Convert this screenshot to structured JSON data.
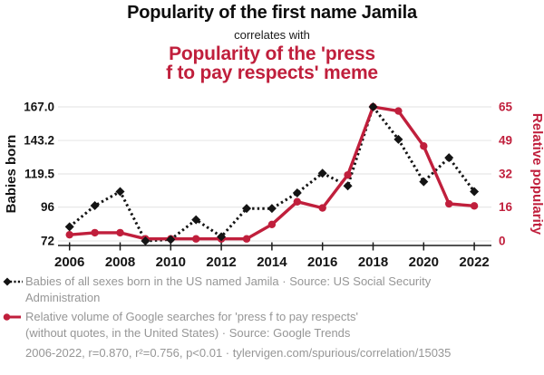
{
  "header": {
    "title": "Popularity of the first name Jamila",
    "connector": "correlates with",
    "subtitle_lines": [
      "Popularity of the 'press",
      "f to pay respects' meme"
    ]
  },
  "colors": {
    "accent_red": "#c01f3c",
    "series_black": "#141414",
    "grid": "#e8e8e8",
    "axis_line": "#1a1a1a",
    "legend_gray": "#969696"
  },
  "chart_data": {
    "type": "line",
    "title": "Popularity of the first name Jamila correlates with Popularity of the 'press f to pay respects' meme",
    "x": [
      2006,
      2007,
      2008,
      2009,
      2010,
      2011,
      2012,
      2013,
      2014,
      2015,
      2016,
      2017,
      2018,
      2019,
      2020,
      2021,
      2022
    ],
    "series": [
      {
        "name": "Babies of all sexes born in the US named Jamila",
        "axis": "left",
        "color": "#141414",
        "style": "dashed",
        "marker": "diamond",
        "values": [
          82,
          97,
          107,
          72,
          73,
          87,
          75,
          95,
          95,
          106,
          120,
          111,
          167,
          144,
          114,
          131,
          107
        ]
      },
      {
        "name": "Relative volume of Google searches for 'press f to pay respects'",
        "axis": "right",
        "color": "#c01f3c",
        "style": "solid",
        "marker": "circle",
        "values": [
          3,
          4,
          4,
          1,
          1,
          1,
          1,
          1,
          8,
          19,
          16,
          32,
          65,
          63,
          46,
          18,
          17
        ]
      }
    ],
    "left_axis": {
      "label": "Babies born",
      "tick_labels": [
        "167.0",
        "143.2",
        "119.5",
        "96",
        "72"
      ],
      "ticks": [
        167.0,
        143.2,
        119.5,
        96,
        72
      ],
      "range": [
        72,
        167
      ]
    },
    "right_axis": {
      "label": "Relative popularity",
      "tick_labels": [
        "65",
        "49",
        "32",
        "16",
        "0"
      ],
      "ticks": [
        65,
        49,
        32,
        16,
        0
      ],
      "range": [
        0,
        65
      ],
      "color": "#c01f3c"
    },
    "x_axis": {
      "tick_years": [
        2006,
        2008,
        2010,
        2012,
        2014,
        2016,
        2018,
        2020,
        2022
      ],
      "range": [
        2006,
        2022
      ]
    },
    "grid": true,
    "legend_position": "bottom"
  },
  "legend": {
    "items": [
      {
        "icon": "diamond-dashed-icon",
        "lines": [
          "Babies of all sexes born in the US named Jamila · Source: US Social Security",
          "Administration"
        ]
      },
      {
        "icon": "circle-solid-icon",
        "lines": [
          "Relative volume of Google searches for 'press f to pay respects'",
          "(without quotes, in the United States) · Source: Google Trends"
        ]
      }
    ]
  },
  "footer": {
    "text": "2006-2022, r=0.870, r²=0.756, p<0.01 · tylervigen.com/spurious/correlation/15035"
  }
}
